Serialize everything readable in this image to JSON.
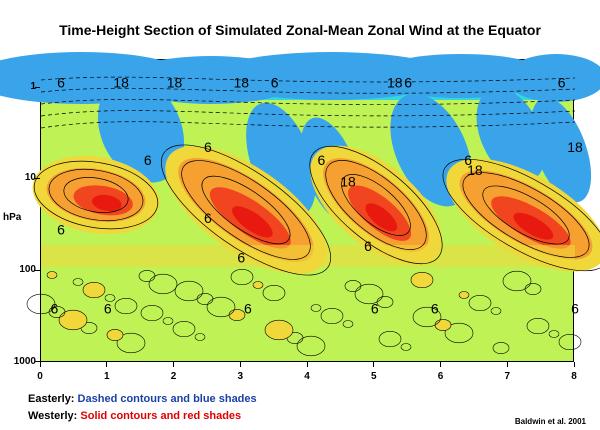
{
  "chart_data": {
    "type": "heatmap",
    "title": "Time-Height Section of Simulated Zonal-Mean Zonal Wind at the Equator",
    "xlabel": "",
    "ylabel": "hPa",
    "xlim": [
      0,
      8
    ],
    "ylim_pressure_hpa": [
      1000,
      0.5
    ],
    "y_scale": "log",
    "x_ticks": [
      "0",
      "1",
      "2",
      "3",
      "4",
      "5",
      "6",
      "7",
      "8"
    ],
    "y_ticks": [
      {
        "label": "1",
        "value": 1
      },
      {
        "label": "10",
        "value": 10
      },
      {
        "label": "100",
        "value": 100
      },
      {
        "label": "1000",
        "value": 1000
      }
    ],
    "contour_labels": [
      {
        "text": "6",
        "x": 0.3,
        "y": 1
      },
      {
        "text": "18",
        "x": 1.2,
        "y": 1
      },
      {
        "text": "18",
        "x": 2.0,
        "y": 1
      },
      {
        "text": "18",
        "x": 3.0,
        "y": 1
      },
      {
        "text": "6",
        "x": 3.5,
        "y": 1
      },
      {
        "text": "18",
        "x": 5.3,
        "y": 1
      },
      {
        "text": "6",
        "x": 5.5,
        "y": 1
      },
      {
        "text": "6",
        "x": 7.8,
        "y": 1
      },
      {
        "text": "18",
        "x": 8.0,
        "y": 5
      },
      {
        "text": "6",
        "x": 1.6,
        "y": 7
      },
      {
        "text": "6",
        "x": 2.5,
        "y": 5
      },
      {
        "text": "6",
        "x": 4.2,
        "y": 7
      },
      {
        "text": "18",
        "x": 4.6,
        "y": 12
      },
      {
        "text": "6",
        "x": 6.4,
        "y": 7
      },
      {
        "text": "18",
        "x": 6.5,
        "y": 9
      },
      {
        "text": "6",
        "x": 0.3,
        "y": 40
      },
      {
        "text": "6",
        "x": 2.5,
        "y": 30
      },
      {
        "text": "6",
        "x": 3.0,
        "y": 80
      },
      {
        "text": "6",
        "x": 4.9,
        "y": 60
      },
      {
        "text": "6",
        "x": 0.2,
        "y": 290
      },
      {
        "text": "6",
        "x": 1.0,
        "y": 290
      },
      {
        "text": "6",
        "x": 3.1,
        "y": 290
      },
      {
        "text": "6",
        "x": 5.0,
        "y": 290
      },
      {
        "text": "6",
        "x": 5.9,
        "y": 290
      },
      {
        "text": "6",
        "x": 8.0,
        "y": 290
      }
    ],
    "legend": {
      "easterly_label": "Easterly:",
      "easterly_desc": "Dashed contours and blue shades",
      "westerly_label": "Westerly:",
      "westerly_desc": "Solid contours and red shades"
    },
    "source": "Baldwin et al. 2001",
    "colors": {
      "strong_easterly": "#1f5ad6",
      "easterly": "#3aa4ea",
      "weak_easterly": "#32d8e0",
      "near_zero": "#bff255",
      "weak_westerly": "#f0d83a",
      "westerly": "#f5a030",
      "strong_westerly": "#f0451e",
      "core_westerly": "#e81a10"
    }
  }
}
